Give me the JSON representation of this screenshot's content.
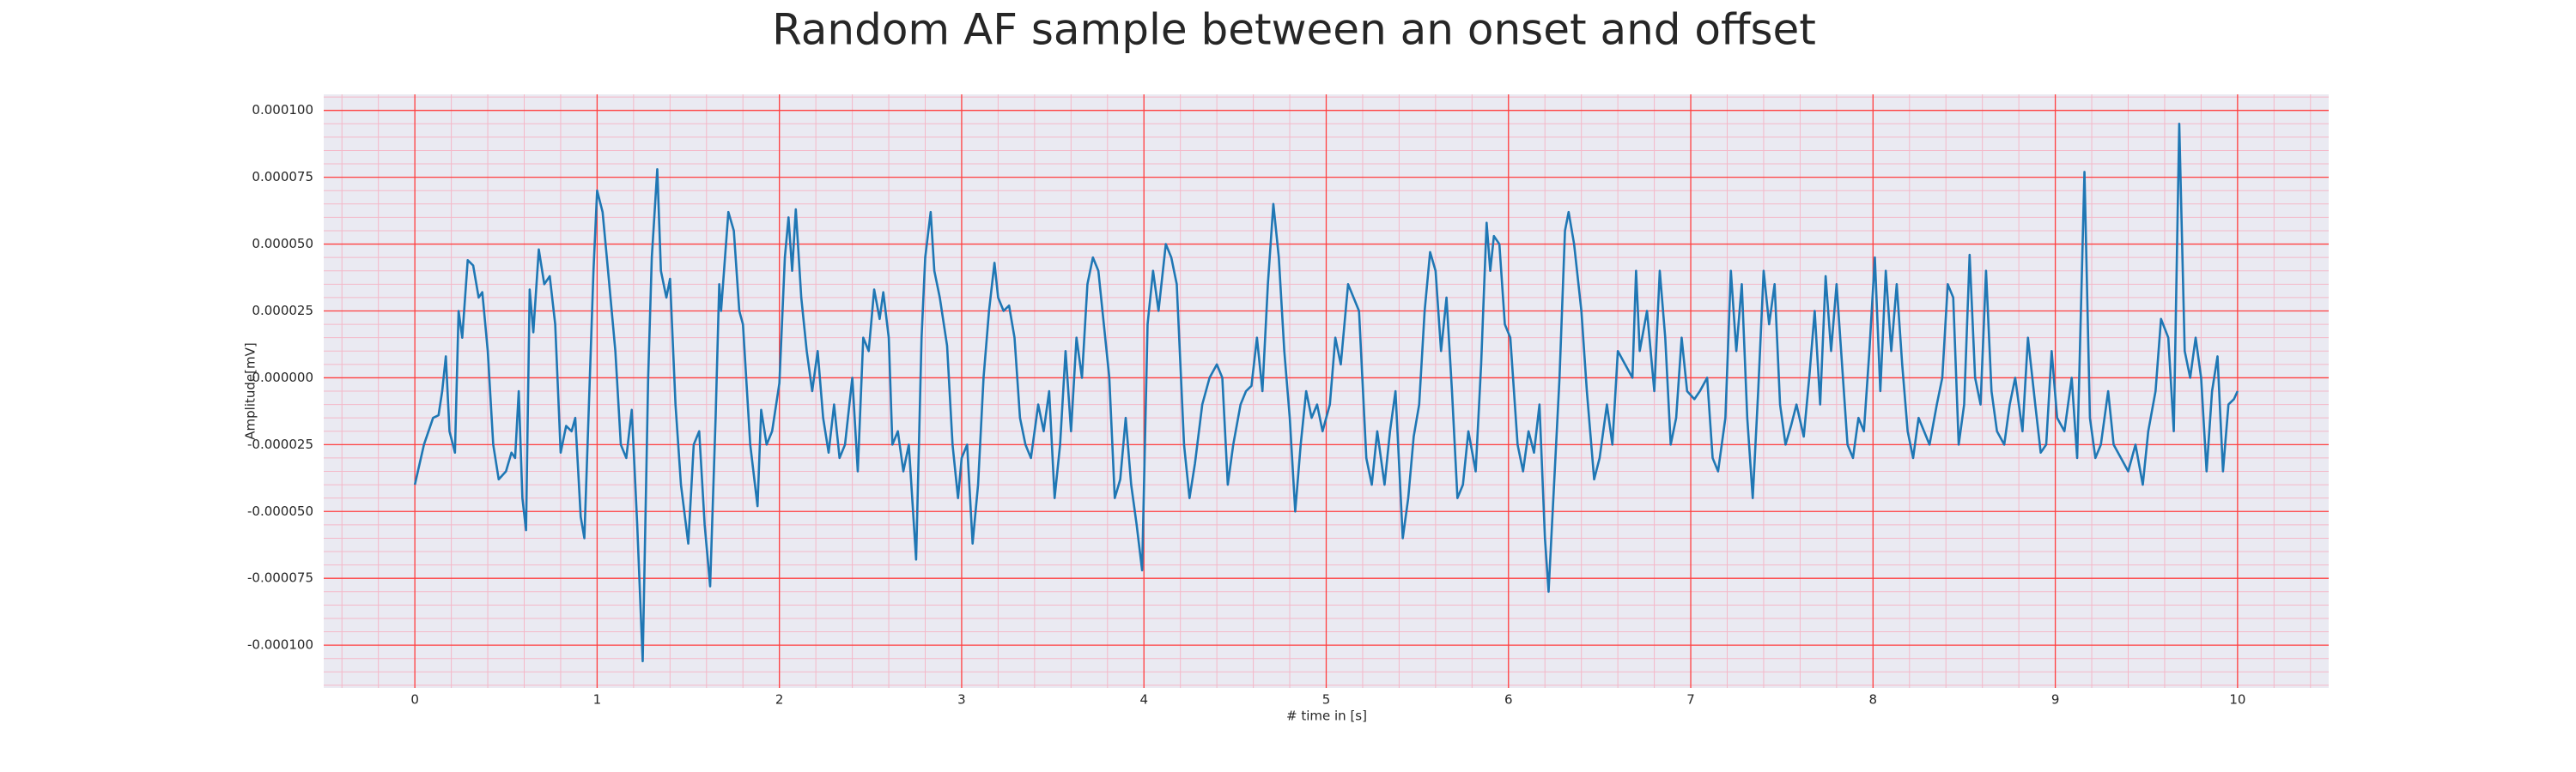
{
  "chart_data": {
    "type": "line",
    "title": "Random AF sample between an onset and offset",
    "xlabel": "# time in [s]",
    "ylabel": "Amplitude[mV]",
    "color": "#1f77b4",
    "grid": true,
    "minor_grid": true,
    "xlim": [
      -0.5,
      10.5
    ],
    "ylim": [
      -0.000116,
      0.000106
    ],
    "xticks": [
      0,
      1,
      2,
      3,
      4,
      5,
      6,
      7,
      8,
      9,
      10
    ],
    "yticks": [
      {
        "value": -0.0001,
        "label": "-0.000100"
      },
      {
        "value": -7.5e-05,
        "label": "-0.000075"
      },
      {
        "value": -5e-05,
        "label": "-0.000050"
      },
      {
        "value": -2.5e-05,
        "label": "-0.000025"
      },
      {
        "value": 0,
        "label": "0.000000"
      },
      {
        "value": 2.5e-05,
        "label": "0.000025"
      },
      {
        "value": 5e-05,
        "label": "0.000050"
      },
      {
        "value": 7.5e-05,
        "label": "0.000075"
      },
      {
        "value": 0.0001,
        "label": "0.000100"
      }
    ],
    "x": [
      0.0,
      0.05,
      0.1,
      0.13,
      0.15,
      0.17,
      0.19,
      0.22,
      0.24,
      0.26,
      0.29,
      0.32,
      0.35,
      0.37,
      0.4,
      0.43,
      0.46,
      0.5,
      0.53,
      0.55,
      0.57,
      0.59,
      0.61,
      0.63,
      0.65,
      0.68,
      0.71,
      0.74,
      0.77,
      0.8,
      0.83,
      0.86,
      0.88,
      0.91,
      0.93,
      0.95,
      0.98,
      1.0,
      1.03,
      1.06,
      1.1,
      1.13,
      1.16,
      1.19,
      1.22,
      1.25,
      1.28,
      1.3,
      1.33,
      1.35,
      1.38,
      1.4,
      1.43,
      1.46,
      1.5,
      1.53,
      1.56,
      1.59,
      1.62,
      1.65,
      1.67,
      1.68,
      1.72,
      1.75,
      1.78,
      1.8,
      1.84,
      1.88,
      1.9,
      1.93,
      1.96,
      2.0,
      2.03,
      2.05,
      2.07,
      2.09,
      2.12,
      2.15,
      2.18,
      2.21,
      2.24,
      2.27,
      2.3,
      2.33,
      2.36,
      2.4,
      2.43,
      2.46,
      2.49,
      2.52,
      2.55,
      2.57,
      2.6,
      2.62,
      2.65,
      2.68,
      2.71,
      2.75,
      2.78,
      2.8,
      2.83,
      2.85,
      2.88,
      2.92,
      2.95,
      2.98,
      3.0,
      3.03,
      3.06,
      3.09,
      3.12,
      3.15,
      3.18,
      3.2,
      3.23,
      3.26,
      3.29,
      3.32,
      3.35,
      3.38,
      3.42,
      3.45,
      3.48,
      3.51,
      3.54,
      3.57,
      3.6,
      3.63,
      3.66,
      3.69,
      3.72,
      3.75,
      3.78,
      3.81,
      3.84,
      3.87,
      3.9,
      3.93,
      3.96,
      3.99,
      4.02,
      4.05,
      4.08,
      4.12,
      4.15,
      4.18,
      4.22,
      4.25,
      4.28,
      4.32,
      4.36,
      4.4,
      4.43,
      4.46,
      4.49,
      4.53,
      4.56,
      4.59,
      4.62,
      4.65,
      4.68,
      4.71,
      4.74,
      4.77,
      4.8,
      4.83,
      4.86,
      4.89,
      4.92,
      4.95,
      4.98,
      5.02,
      5.05,
      5.08,
      5.12,
      5.15,
      5.18,
      5.22,
      5.25,
      5.28,
      5.32,
      5.35,
      5.38,
      5.42,
      5.45,
      5.48,
      5.51,
      5.54,
      5.57,
      5.6,
      5.63,
      5.66,
      5.69,
      5.72,
      5.75,
      5.78,
      5.82,
      5.85,
      5.88,
      5.9,
      5.92,
      5.95,
      5.98,
      6.01,
      6.05,
      6.08,
      6.11,
      6.14,
      6.17,
      6.2,
      6.22,
      6.25,
      6.28,
      6.31,
      6.33,
      6.36,
      6.4,
      6.43,
      6.47,
      6.5,
      6.54,
      6.57,
      6.6,
      6.64,
      6.68,
      6.7,
      6.72,
      6.76,
      6.8,
      6.83,
      6.86,
      6.89,
      6.92,
      6.95,
      6.98,
      7.02,
      7.05,
      7.09,
      7.12,
      7.15,
      7.19,
      7.22,
      7.25,
      7.28,
      7.31,
      7.34,
      7.37,
      7.4,
      7.43,
      7.46,
      7.49,
      7.52,
      7.55,
      7.58,
      7.62,
      7.65,
      7.68,
      7.71,
      7.74,
      7.77,
      7.8,
      7.83,
      7.86,
      7.89,
      7.92,
      7.95,
      7.98,
      8.01,
      8.04,
      8.07,
      8.1,
      8.13,
      8.16,
      8.19,
      8.22,
      8.25,
      8.28,
      8.31,
      8.35,
      8.38,
      8.41,
      8.44,
      8.47,
      8.5,
      8.53,
      8.56,
      8.59,
      8.62,
      8.65,
      8.68,
      8.72,
      8.75,
      8.78,
      8.82,
      8.85,
      8.89,
      8.92,
      8.95,
      8.98,
      9.01,
      9.05,
      9.09,
      9.12,
      9.16,
      9.19,
      9.22,
      9.25,
      9.29,
      9.32,
      9.36,
      9.4,
      9.44,
      9.48,
      9.51,
      9.55,
      9.58,
      9.62,
      9.65,
      9.68,
      9.71,
      9.74,
      9.77,
      9.8,
      9.83,
      9.86,
      9.89,
      9.92,
      9.95,
      9.98,
      10.0
    ],
    "values": [
      -4e-05,
      -2.5e-05,
      -1.5e-05,
      -1.4e-05,
      -5e-06,
      8e-06,
      -2e-05,
      -2.8e-05,
      2.5e-05,
      1.5e-05,
      4.4e-05,
      4.2e-05,
      3e-05,
      3.2e-05,
      1e-05,
      -2.5e-05,
      -3.8e-05,
      -3.5e-05,
      -2.8e-05,
      -3e-05,
      -5e-06,
      -4.5e-05,
      -5.7e-05,
      3.3e-05,
      1.7e-05,
      4.8e-05,
      3.5e-05,
      3.8e-05,
      2e-05,
      -2.8e-05,
      -1.8e-05,
      -2e-05,
      -1.5e-05,
      -5.2e-05,
      -6e-05,
      -2e-05,
      4e-05,
      7e-05,
      6.2e-05,
      4e-05,
      1e-05,
      -2.5e-05,
      -3e-05,
      -1.2e-05,
      -5.5e-05,
      -0.000106,
      0,
      4.5e-05,
      7.8e-05,
      4e-05,
      3e-05,
      3.7e-05,
      -1e-05,
      -4e-05,
      -6.2e-05,
      -2.5e-05,
      -2e-05,
      -5.5e-05,
      -7.8e-05,
      -1.5e-05,
      3.5e-05,
      2.5e-05,
      6.2e-05,
      5.5e-05,
      2.5e-05,
      2e-05,
      -2.5e-05,
      -4.8e-05,
      -1.2e-05,
      -2.5e-05,
      -2e-05,
      -2e-06,
      4.5e-05,
      6e-05,
      4e-05,
      6.3e-05,
      3e-05,
      1e-05,
      -5e-06,
      1e-05,
      -1.5e-05,
      -2.8e-05,
      -1e-05,
      -3e-05,
      -2.5e-05,
      0,
      -3.5e-05,
      1.5e-05,
      1e-05,
      3.3e-05,
      2.2e-05,
      3.2e-05,
      1.5e-05,
      -2.5e-05,
      -2e-05,
      -3.5e-05,
      -2.5e-05,
      -6.8e-05,
      1.5e-05,
      4.5e-05,
      6.2e-05,
      4e-05,
      3e-05,
      1.2e-05,
      -2.5e-05,
      -4.5e-05,
      -3e-05,
      -2.5e-05,
      -6.2e-05,
      -4e-05,
      0,
      2.5e-05,
      4.3e-05,
      3e-05,
      2.5e-05,
      2.7e-05,
      1.5e-05,
      -1.5e-05,
      -2.5e-05,
      -3e-05,
      -1e-05,
      -2e-05,
      -5e-06,
      -4.5e-05,
      -2.5e-05,
      1e-05,
      -2e-05,
      1.5e-05,
      0,
      3.5e-05,
      4.5e-05,
      4e-05,
      2e-05,
      0,
      -4.5e-05,
      -3.8e-05,
      -1.5e-05,
      -4e-05,
      -5.5e-05,
      -7.2e-05,
      2e-05,
      4e-05,
      2.5e-05,
      5e-05,
      4.5e-05,
      3.5e-05,
      -2.5e-05,
      -4.5e-05,
      -3.2e-05,
      -1e-05,
      0,
      5e-06,
      0,
      -4e-05,
      -2.5e-05,
      -1e-05,
      -5e-06,
      -3e-06,
      1.5e-05,
      -5e-06,
      3.5e-05,
      6.5e-05,
      4.5e-05,
      1e-05,
      -1.5e-05,
      -5e-05,
      -2.5e-05,
      -5e-06,
      -1.5e-05,
      -1e-05,
      -2e-05,
      -1e-05,
      1.5e-05,
      5e-06,
      3.5e-05,
      3e-05,
      2.5e-05,
      -3e-05,
      -4e-05,
      -2e-05,
      -4e-05,
      -2e-05,
      -5e-06,
      -6e-05,
      -4.5e-05,
      -2.2e-05,
      -1e-05,
      2.5e-05,
      4.7e-05,
      4e-05,
      1e-05,
      3e-05,
      -5e-06,
      -4.5e-05,
      -4e-05,
      -2e-05,
      -3.5e-05,
      5e-06,
      5.8e-05,
      4e-05,
      5.3e-05,
      5e-05,
      2e-05,
      1.5e-05,
      -2.5e-05,
      -3.5e-05,
      -2e-05,
      -2.8e-05,
      -1e-05,
      -6e-05,
      -8e-05,
      -4e-05,
      0,
      5.5e-05,
      6.2e-05,
      5e-05,
      2.5e-05,
      -5e-06,
      -3.8e-05,
      -3e-05,
      -1e-05,
      -2.5e-05,
      1e-05,
      5e-06,
      0,
      4e-05,
      1e-05,
      2.5e-05,
      -5e-06,
      4e-05,
      1.5e-05,
      -2.5e-05,
      -1.5e-05,
      1.5e-05,
      -5e-06,
      -8e-06,
      -5e-06,
      0,
      -3e-05,
      -3.5e-05,
      -1.5e-05,
      4e-05,
      1e-05,
      3.5e-05,
      -1.5e-05,
      -4.5e-05,
      -5e-06,
      4e-05,
      2e-05,
      3.5e-05,
      -1e-05,
      -2.5e-05,
      -1.8e-05,
      -1e-05,
      -2.2e-05,
      0,
      2.5e-05,
      -1e-05,
      3.8e-05,
      1e-05,
      3.5e-05,
      5e-06,
      -2.5e-05,
      -3e-05,
      -1.5e-05,
      -2e-05,
      1e-05,
      4.5e-05,
      -5e-06,
      4e-05,
      1e-05,
      3.5e-05,
      5e-06,
      -2e-05,
      -3e-05,
      -1.5e-05,
      -2e-05,
      -2.5e-05,
      -1e-05,
      0,
      3.5e-05,
      3e-05,
      -2.5e-05,
      -1e-05,
      4.6e-05,
      0,
      -1e-05,
      4e-05,
      -5e-06,
      -2e-05,
      -2.5e-05,
      -1e-05,
      0,
      -2e-05,
      1.5e-05,
      -1e-05,
      -2.8e-05,
      -2.5e-05,
      1e-05,
      -1.5e-05,
      -2e-05,
      0,
      -3e-05,
      7.7e-05,
      -1.5e-05,
      -3e-05,
      -2.5e-05,
      -5e-06,
      -2.5e-05,
      -3e-05,
      -3.5e-05,
      -2.5e-05,
      -4e-05,
      -2e-05,
      -5e-06,
      2.2e-05,
      1.5e-05,
      -2e-05,
      9.5e-05,
      1e-05,
      0,
      1.5e-05,
      0,
      -3.5e-05,
      -5e-06,
      8e-06,
      -3.5e-05,
      -1e-05,
      -8e-06,
      -5e-06
    ]
  }
}
